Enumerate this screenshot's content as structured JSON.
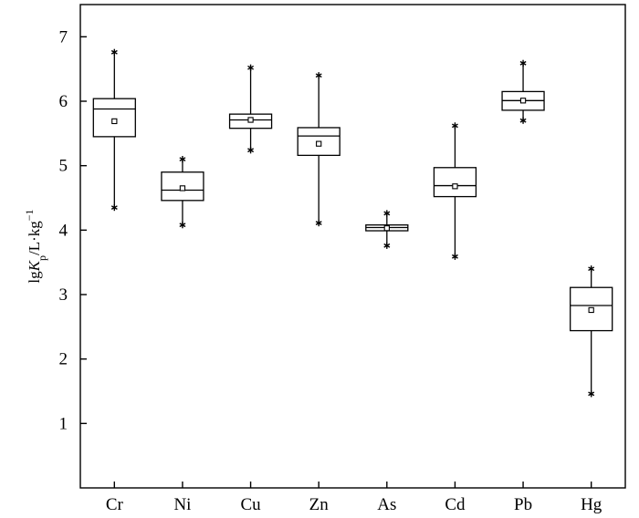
{
  "chart_data": {
    "type": "box",
    "title": "",
    "xlabel": "",
    "ylabel": {
      "parts": [
        {
          "text": "lg",
          "style": "normal"
        },
        {
          "text": "K",
          "style": "italic"
        },
        {
          "text": "p",
          "style": "sub"
        },
        {
          "text": "/L·kg",
          "style": "normal"
        },
        {
          "text": "−1",
          "style": "sup"
        }
      ]
    },
    "ylim": [
      0,
      7.5
    ],
    "yticks": [
      1,
      2,
      3,
      4,
      5,
      6,
      7
    ],
    "categories": [
      "Cr",
      "Ni",
      "Cu",
      "Zn",
      "As",
      "Cd",
      "Pb",
      "Hg"
    ],
    "boxes": [
      {
        "min": 4.35,
        "q1": 5.45,
        "median": 5.88,
        "q3": 6.04,
        "max": 6.76,
        "mean": 5.69
      },
      {
        "min": 4.08,
        "q1": 4.46,
        "median": 4.62,
        "q3": 4.9,
        "max": 5.1,
        "mean": 4.65
      },
      {
        "min": 5.24,
        "q1": 5.58,
        "median": 5.71,
        "q3": 5.8,
        "max": 6.52,
        "mean": 5.71
      },
      {
        "min": 4.11,
        "q1": 5.16,
        "median": 5.46,
        "q3": 5.59,
        "max": 6.4,
        "mean": 5.34
      },
      {
        "min": 3.76,
        "q1": 3.99,
        "median": 4.04,
        "q3": 4.08,
        "max": 4.26,
        "mean": 4.03
      },
      {
        "min": 3.59,
        "q1": 4.52,
        "median": 4.69,
        "q3": 4.97,
        "max": 5.62,
        "mean": 4.68
      },
      {
        "min": 5.7,
        "q1": 5.86,
        "median": 6.01,
        "q3": 6.15,
        "max": 6.59,
        "mean": 6.01
      },
      {
        "min": 1.46,
        "q1": 2.44,
        "median": 2.83,
        "q3": 3.11,
        "max": 3.4,
        "mean": 2.76
      }
    ],
    "grid": false,
    "legend": "none"
  }
}
